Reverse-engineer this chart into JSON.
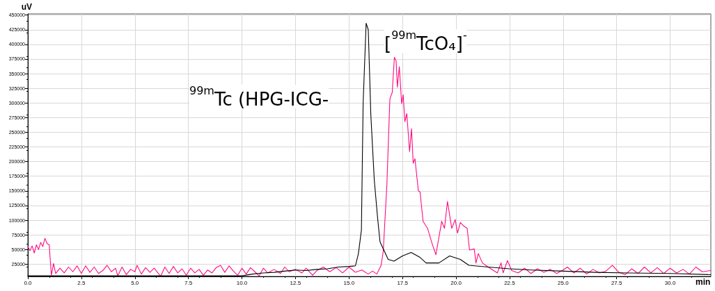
{
  "chart_data": {
    "type": "line",
    "xlabel": "min",
    "ylabel": "uV",
    "annotations": [
      "$^{99m}$Tc (HPG-ICG-",
      "[$^{99m}$TcO₄]$^{-}$"
    ],
    "xlim": [
      0,
      31.9
    ],
    "ylim": [
      4000,
      452000
    ],
    "xticks": [
      {
        "value": 0,
        "label": "0.0"
      },
      2.5,
      {
        "value": 5,
        "label": "5.0"
      },
      7.5,
      {
        "value": 10,
        "label": "10.0"
      },
      12.5,
      {
        "value": 15,
        "label": "15.0"
      },
      17.5,
      {
        "value": 20,
        "label": "20.0"
      },
      22.5,
      {
        "value": 25,
        "label": "25.0"
      },
      27.5,
      {
        "value": 30,
        "label": "30.0"
      }
    ],
    "yticks": [
      25000,
      50000,
      75000,
      100000,
      125000,
      150000,
      175000,
      200000,
      225000,
      250000,
      275000,
      300000,
      325000,
      350000,
      375000,
      400000,
      425000,
      450000
    ],
    "grid": true,
    "marker": "none",
    "line_style": "solid",
    "series": [
      {
        "color": "#ff0a82",
        "x": [
          0,
          0.1,
          0.2,
          0.3,
          0.4,
          0.5,
          0.6,
          0.7,
          0.8,
          0.9,
          1.0,
          1.05,
          1.1,
          1.2,
          1.3,
          1.5,
          1.7,
          1.9,
          2.1,
          2.3,
          2.5,
          2.7,
          2.9,
          3.1,
          3.3,
          3.5,
          3.7,
          3.9,
          4.1,
          4.2,
          4.4,
          4.6,
          4.8,
          5.0,
          5.1,
          5.3,
          5.5,
          5.7,
          5.9,
          6.1,
          6.2,
          6.4,
          6.6,
          6.8,
          7.0,
          7.2,
          7.4,
          7.6,
          7.8,
          8.0,
          8.2,
          8.4,
          8.6,
          8.8,
          9.0,
          9.2,
          9.4,
          9.6,
          9.8,
          10.0,
          10.2,
          10.4,
          10.6,
          10.8,
          11.0,
          11.2,
          11.5,
          11.8,
          12.0,
          12.2,
          12.5,
          12.8,
          13.0,
          13.3,
          13.5,
          13.8,
          14.1,
          14.4,
          14.7,
          15.0,
          15.3,
          15.6,
          15.9,
          16.1,
          16.3,
          16.5,
          16.6,
          16.77,
          16.91,
          17.02,
          17.12,
          17.2,
          17.26,
          17.35,
          17.46,
          17.53,
          17.61,
          17.7,
          17.83,
          17.92,
          18.0,
          18.08,
          18.24,
          18.32,
          18.46,
          18.67,
          18.89,
          19.06,
          19.33,
          19.46,
          19.6,
          19.8,
          19.96,
          20.07,
          20.2,
          20.36,
          20.52,
          20.63,
          20.85,
          20.93,
          21.04,
          21.23,
          21.5,
          21.93,
          22.1,
          22.2,
          22.4,
          22.6,
          22.9,
          23.2,
          23.5,
          23.8,
          24.1,
          24.4,
          24.7,
          25.0,
          25.2,
          25.5,
          25.8,
          26.1,
          26.4,
          26.7,
          27.0,
          27.3,
          27.6,
          27.9,
          28.2,
          28.5,
          28.8,
          29.1,
          29.4,
          29.7,
          30.0,
          30.3,
          30.6,
          30.9,
          31.2,
          31.5,
          31.9
        ],
        "values": [
          55000,
          48000,
          56000,
          44000,
          58000,
          50000,
          62000,
          55000,
          69000,
          60000,
          58000,
          30000,
          6000,
          26000,
          9000,
          18000,
          10000,
          20000,
          12000,
          22000,
          9000,
          22000,
          11000,
          20000,
          9000,
          14000,
          23000,
          12000,
          18000,
          5000,
          20000,
          7000,
          16000,
          12000,
          23000,
          8000,
          19000,
          11000,
          18000,
          9000,
          4000,
          20000,
          9000,
          21000,
          10000,
          17000,
          6000,
          18000,
          10000,
          16000,
          6000,
          15000,
          10000,
          19000,
          23000,
          11000,
          22000,
          13000,
          6000,
          18000,
          8000,
          19000,
          12000,
          5000,
          18000,
          10000,
          16000,
          9000,
          20000,
          12000,
          16000,
          10000,
          18000,
          6000,
          14000,
          20000,
          12000,
          19000,
          10000,
          20000,
          11000,
          15000,
          8000,
          13000,
          8000,
          23000,
          47000,
          161000,
          307000,
          318000,
          378000,
          372000,
          327000,
          362000,
          299000,
          314000,
          268000,
          282000,
          217000,
          256000,
          197000,
          205000,
          150000,
          148000,
          98000,
          86000,
          59000,
          41000,
          98000,
          86000,
          132000,
          86000,
          101000,
          78000,
          96000,
          90000,
          86000,
          49000,
          51000,
          27000,
          43000,
          27000,
          20000,
          10000,
          27000,
          10000,
          31000,
          14000,
          10000,
          18000,
          9000,
          17000,
          11000,
          16000,
          9000,
          15000,
          20000,
          10000,
          18000,
          8000,
          16000,
          10000,
          13000,
          23000,
          11000,
          7000,
          17000,
          9000,
          20000,
          10000,
          19000,
          9000,
          18000,
          10000,
          16000,
          8000,
          20000,
          12000,
          14000
        ]
      },
      {
        "color": "#000000",
        "x": [
          0,
          1.0,
          1.1,
          3,
          6,
          9,
          10,
          10.5,
          11,
          11.5,
          12,
          12.5,
          13,
          13.5,
          14,
          14.5,
          15,
          15.3,
          15.44,
          15.58,
          15.66,
          15.8,
          15.9,
          16.02,
          16.18,
          16.34,
          16.45,
          16.6,
          16.83,
          17.1,
          17.5,
          17.9,
          18.3,
          18.6,
          19.2,
          19.7,
          20.2,
          20.6,
          21.5,
          22.5,
          23.5,
          25,
          26.5,
          28,
          30,
          31.9
        ],
        "values": [
          5000,
          5000,
          5000,
          5000,
          5000,
          5000,
          5000,
          8000,
          10000,
          11000,
          13000,
          15000,
          14000,
          16000,
          17000,
          20000,
          21000,
          22000,
          43000,
          83000,
          299000,
          436000,
          425000,
          280000,
          169000,
          102000,
          63000,
          51000,
          33000,
          30000,
          39000,
          45000,
          37000,
          27000,
          27000,
          39000,
          33000,
          23000,
          20000,
          17000,
          15000,
          13000,
          11000,
          10000,
          9000,
          7000
        ]
      }
    ]
  }
}
